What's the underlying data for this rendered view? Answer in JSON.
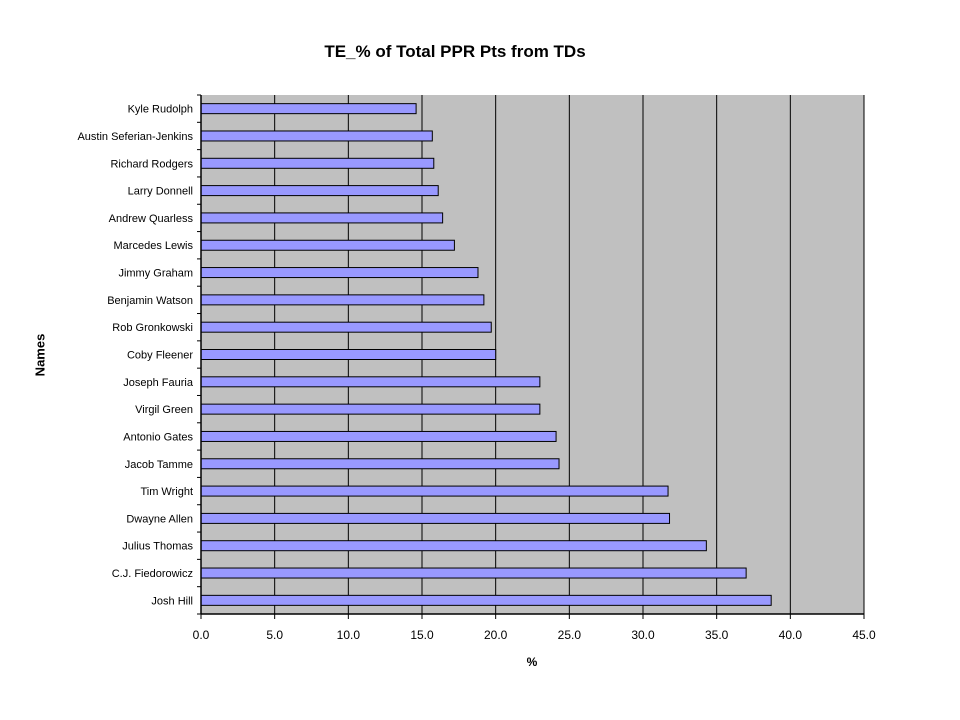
{
  "chart_data": {
    "type": "bar",
    "orientation": "horizontal",
    "title": "TE_% of Total PPR Pts from TDs",
    "xlabel": "%",
    "ylabel": "Names",
    "xlim": [
      0,
      45
    ],
    "x_ticks": [
      "0.0",
      "5.0",
      "10.0",
      "15.0",
      "20.0",
      "25.0",
      "30.0",
      "35.0",
      "40.0",
      "45.0"
    ],
    "grid": "vertical",
    "legend": "none",
    "plot_background": "#c0c0c0",
    "bar_color": "#9999ff",
    "categories": [
      "Kyle Rudolph",
      "Austin Seferian-Jenkins",
      "Richard Rodgers",
      "Larry Donnell",
      "Andrew Quarless",
      "Marcedes Lewis",
      "Jimmy Graham",
      "Benjamin Watson",
      "Rob Gronkowski",
      "Coby Fleener",
      "Joseph Fauria",
      "Virgil Green",
      "Antonio Gates",
      "Jacob Tamme",
      "Tim Wright",
      "Dwayne Allen",
      "Julius Thomas",
      "C.J. Fiedorowicz",
      "Josh Hill"
    ],
    "values": [
      14.6,
      15.7,
      15.8,
      16.1,
      16.4,
      17.2,
      18.8,
      19.2,
      19.7,
      20.0,
      23.0,
      23.0,
      24.1,
      24.3,
      31.7,
      31.8,
      34.3,
      37.0,
      38.7
    ]
  }
}
